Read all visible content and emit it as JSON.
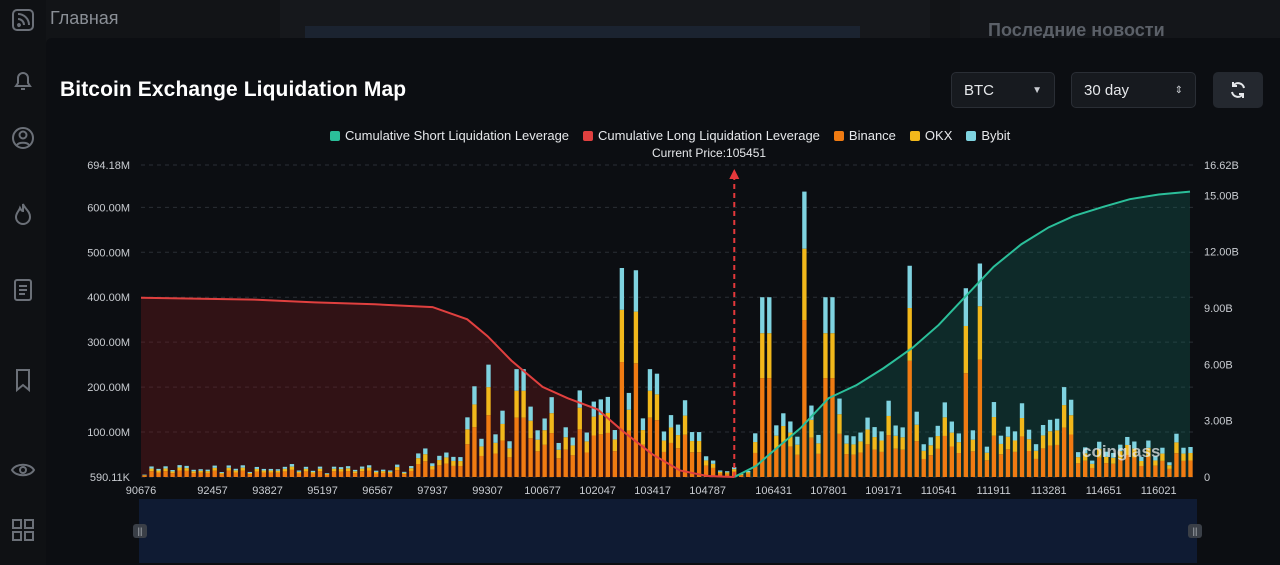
{
  "app": {
    "nav_label": "Главная",
    "right_panel_title": "Последние новости",
    "rail_icons": [
      "feed-icon",
      "bell-icon",
      "user-icon",
      "fire-icon",
      "document-icon",
      "bookmark-icon",
      "eye-icon",
      "grid-icon"
    ]
  },
  "card": {
    "title": "Bitcoin Exchange Liquidation Map",
    "coin_select": "BTC",
    "range_select": "30 day",
    "refresh_icon": "refresh-icon",
    "watermark": "coinglass"
  },
  "colors": {
    "short_cum": "#2bbf9a",
    "long_cum": "#e0403f",
    "binance": "#f07b12",
    "okx": "#f2b81b",
    "bybit": "#7fd3e0",
    "current_price_line": "#e5383b"
  },
  "chart_data": {
    "type": "bar",
    "title": "Bitcoin Exchange Liquidation Map",
    "legend": [
      "Cumulative Short Liquidation Leverage",
      "Cumulative Long Liquidation Leverage",
      "Binance",
      "OKX",
      "Bybit"
    ],
    "current_price_label": "Current Price:105451",
    "current_price": 105451,
    "y_left_ticks": [
      "694.18M",
      "600.00M",
      "500.00M",
      "400.00M",
      "300.00M",
      "200.00M",
      "100.00M",
      "590.11K"
    ],
    "y_left_range": [
      0,
      694.18
    ],
    "y_right_ticks": [
      "16.62B",
      "15.00B",
      "12.00B",
      "9.00B",
      "6.00B",
      "3.00B",
      "0"
    ],
    "y_right_range": [
      0,
      16.62
    ],
    "x_ticks": [
      "90676",
      "92457",
      "93827",
      "95197",
      "96567",
      "97937",
      "99307",
      "100677",
      "102047",
      "103417",
      "104787",
      "106431",
      "107801",
      "109171",
      "110541",
      "111911",
      "113281",
      "114651",
      "116021"
    ],
    "x_range": [
      90676,
      116900
    ],
    "series": [
      {
        "name": "Cumulative Long Liquidation Leverage",
        "axis": "right",
        "x": [
          90676,
          92000,
          93500,
          95000,
          96500,
          97937,
          98800,
          99307,
          99900,
          100677,
          101300,
          102047,
          102700,
          103417,
          104100,
          104787,
          105451
        ],
        "y": [
          9.55,
          9.5,
          9.45,
          9.3,
          9.2,
          9.05,
          8.4,
          7.5,
          6.2,
          4.8,
          4.2,
          3.6,
          2.4,
          1.2,
          0.35,
          0.05,
          0
        ]
      },
      {
        "name": "Cumulative Short Liquidation Leverage",
        "axis": "right",
        "x": [
          105451,
          106000,
          106431,
          107100,
          107801,
          108500,
          109171,
          109900,
          110541,
          111200,
          111911,
          112600,
          113281,
          113900,
          114651,
          115300,
          116021,
          116800
        ],
        "y": [
          0,
          0.6,
          1.4,
          2.6,
          4.2,
          4.9,
          5.8,
          6.9,
          8.1,
          9.6,
          11.2,
          12.4,
          13.3,
          13.9,
          14.4,
          14.8,
          15.05,
          15.2
        ]
      }
    ],
    "bars": {
      "bin_count": 150,
      "x_start": 90676,
      "x_end": 116900,
      "units": "M",
      "peaks": [
        {
          "x": 99307,
          "total": 250
        },
        {
          "x": 100100,
          "total": 240
        },
        {
          "x": 102700,
          "total": 465
        },
        {
          "x": 103000,
          "total": 460
        },
        {
          "x": 103417,
          "total": 240
        },
        {
          "x": 104500,
          "total": 100
        },
        {
          "x": 106250,
          "total": 400
        },
        {
          "x": 107200,
          "total": 350
        },
        {
          "x": 107250,
          "total": 635
        },
        {
          "x": 107801,
          "total": 400
        },
        {
          "x": 109800,
          "total": 470
        },
        {
          "x": 111200,
          "total": 420
        },
        {
          "x": 111500,
          "total": 475
        },
        {
          "x": 113600,
          "total": 200
        }
      ],
      "exchange_mix": {
        "binance": 0.55,
        "okx": 0.25,
        "bybit": 0.2
      }
    }
  }
}
